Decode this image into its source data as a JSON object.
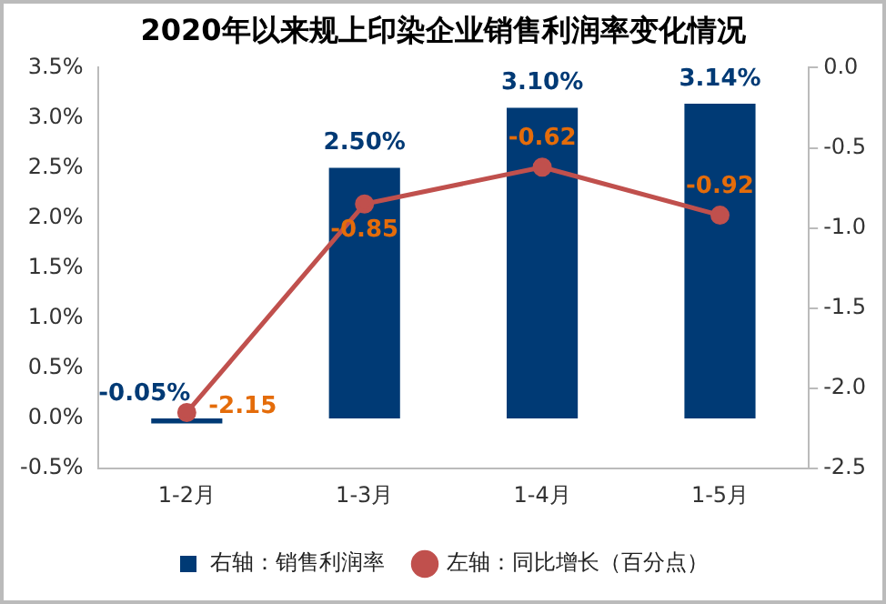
{
  "chart_data": {
    "type": "bar",
    "title": "2020年以来规上印染企业销售利润率变化情况",
    "categories": [
      "1-2月",
      "1-3月",
      "1-4月",
      "1-5月"
    ],
    "series": [
      {
        "name": "右轴：销售利润率",
        "color": "#003a75",
        "values": [
          -0.05,
          2.5,
          3.1,
          3.14
        ],
        "value_labels": [
          "-0.05%",
          "2.50%",
          "3.10%",
          "3.14%"
        ]
      },
      {
        "name": "左轴：同比增长（百分点）",
        "type": "line",
        "axis": "y2",
        "color": "#c0504d",
        "values": [
          -2.15,
          -0.85,
          -0.62,
          -0.92
        ],
        "value_labels": [
          "-2.15",
          "-0.85",
          "-0.62",
          "-0.92"
        ]
      }
    ],
    "ylim": [
      -0.5,
      3.5
    ],
    "yticks": [
      {
        "value": -0.5,
        "label": "-0.5%"
      },
      {
        "value": 0,
        "label": "0.0%"
      },
      {
        "value": 0.5,
        "label": "0.5%"
      },
      {
        "value": 1,
        "label": "1.0%"
      },
      {
        "value": 1.5,
        "label": "1.5%"
      },
      {
        "value": 2,
        "label": "2.0%"
      },
      {
        "value": 2.5,
        "label": "2.5%"
      },
      {
        "value": 3,
        "label": "3.0%"
      },
      {
        "value": 3.5,
        "label": "3.5%"
      }
    ],
    "y2lim": [
      -2.5,
      0
    ],
    "y2ticks": [
      {
        "value": -2.5,
        "label": "-2.5"
      },
      {
        "value": -2,
        "label": "-2.0"
      },
      {
        "value": -1.5,
        "label": "-1.5"
      },
      {
        "value": -1,
        "label": "-1.0"
      },
      {
        "value": -0.5,
        "label": "-0.5"
      },
      {
        "value": 0,
        "label": "0.0"
      }
    ],
    "grid": false,
    "legend": "bottom",
    "marker": "circle",
    "line_style": "solid"
  }
}
